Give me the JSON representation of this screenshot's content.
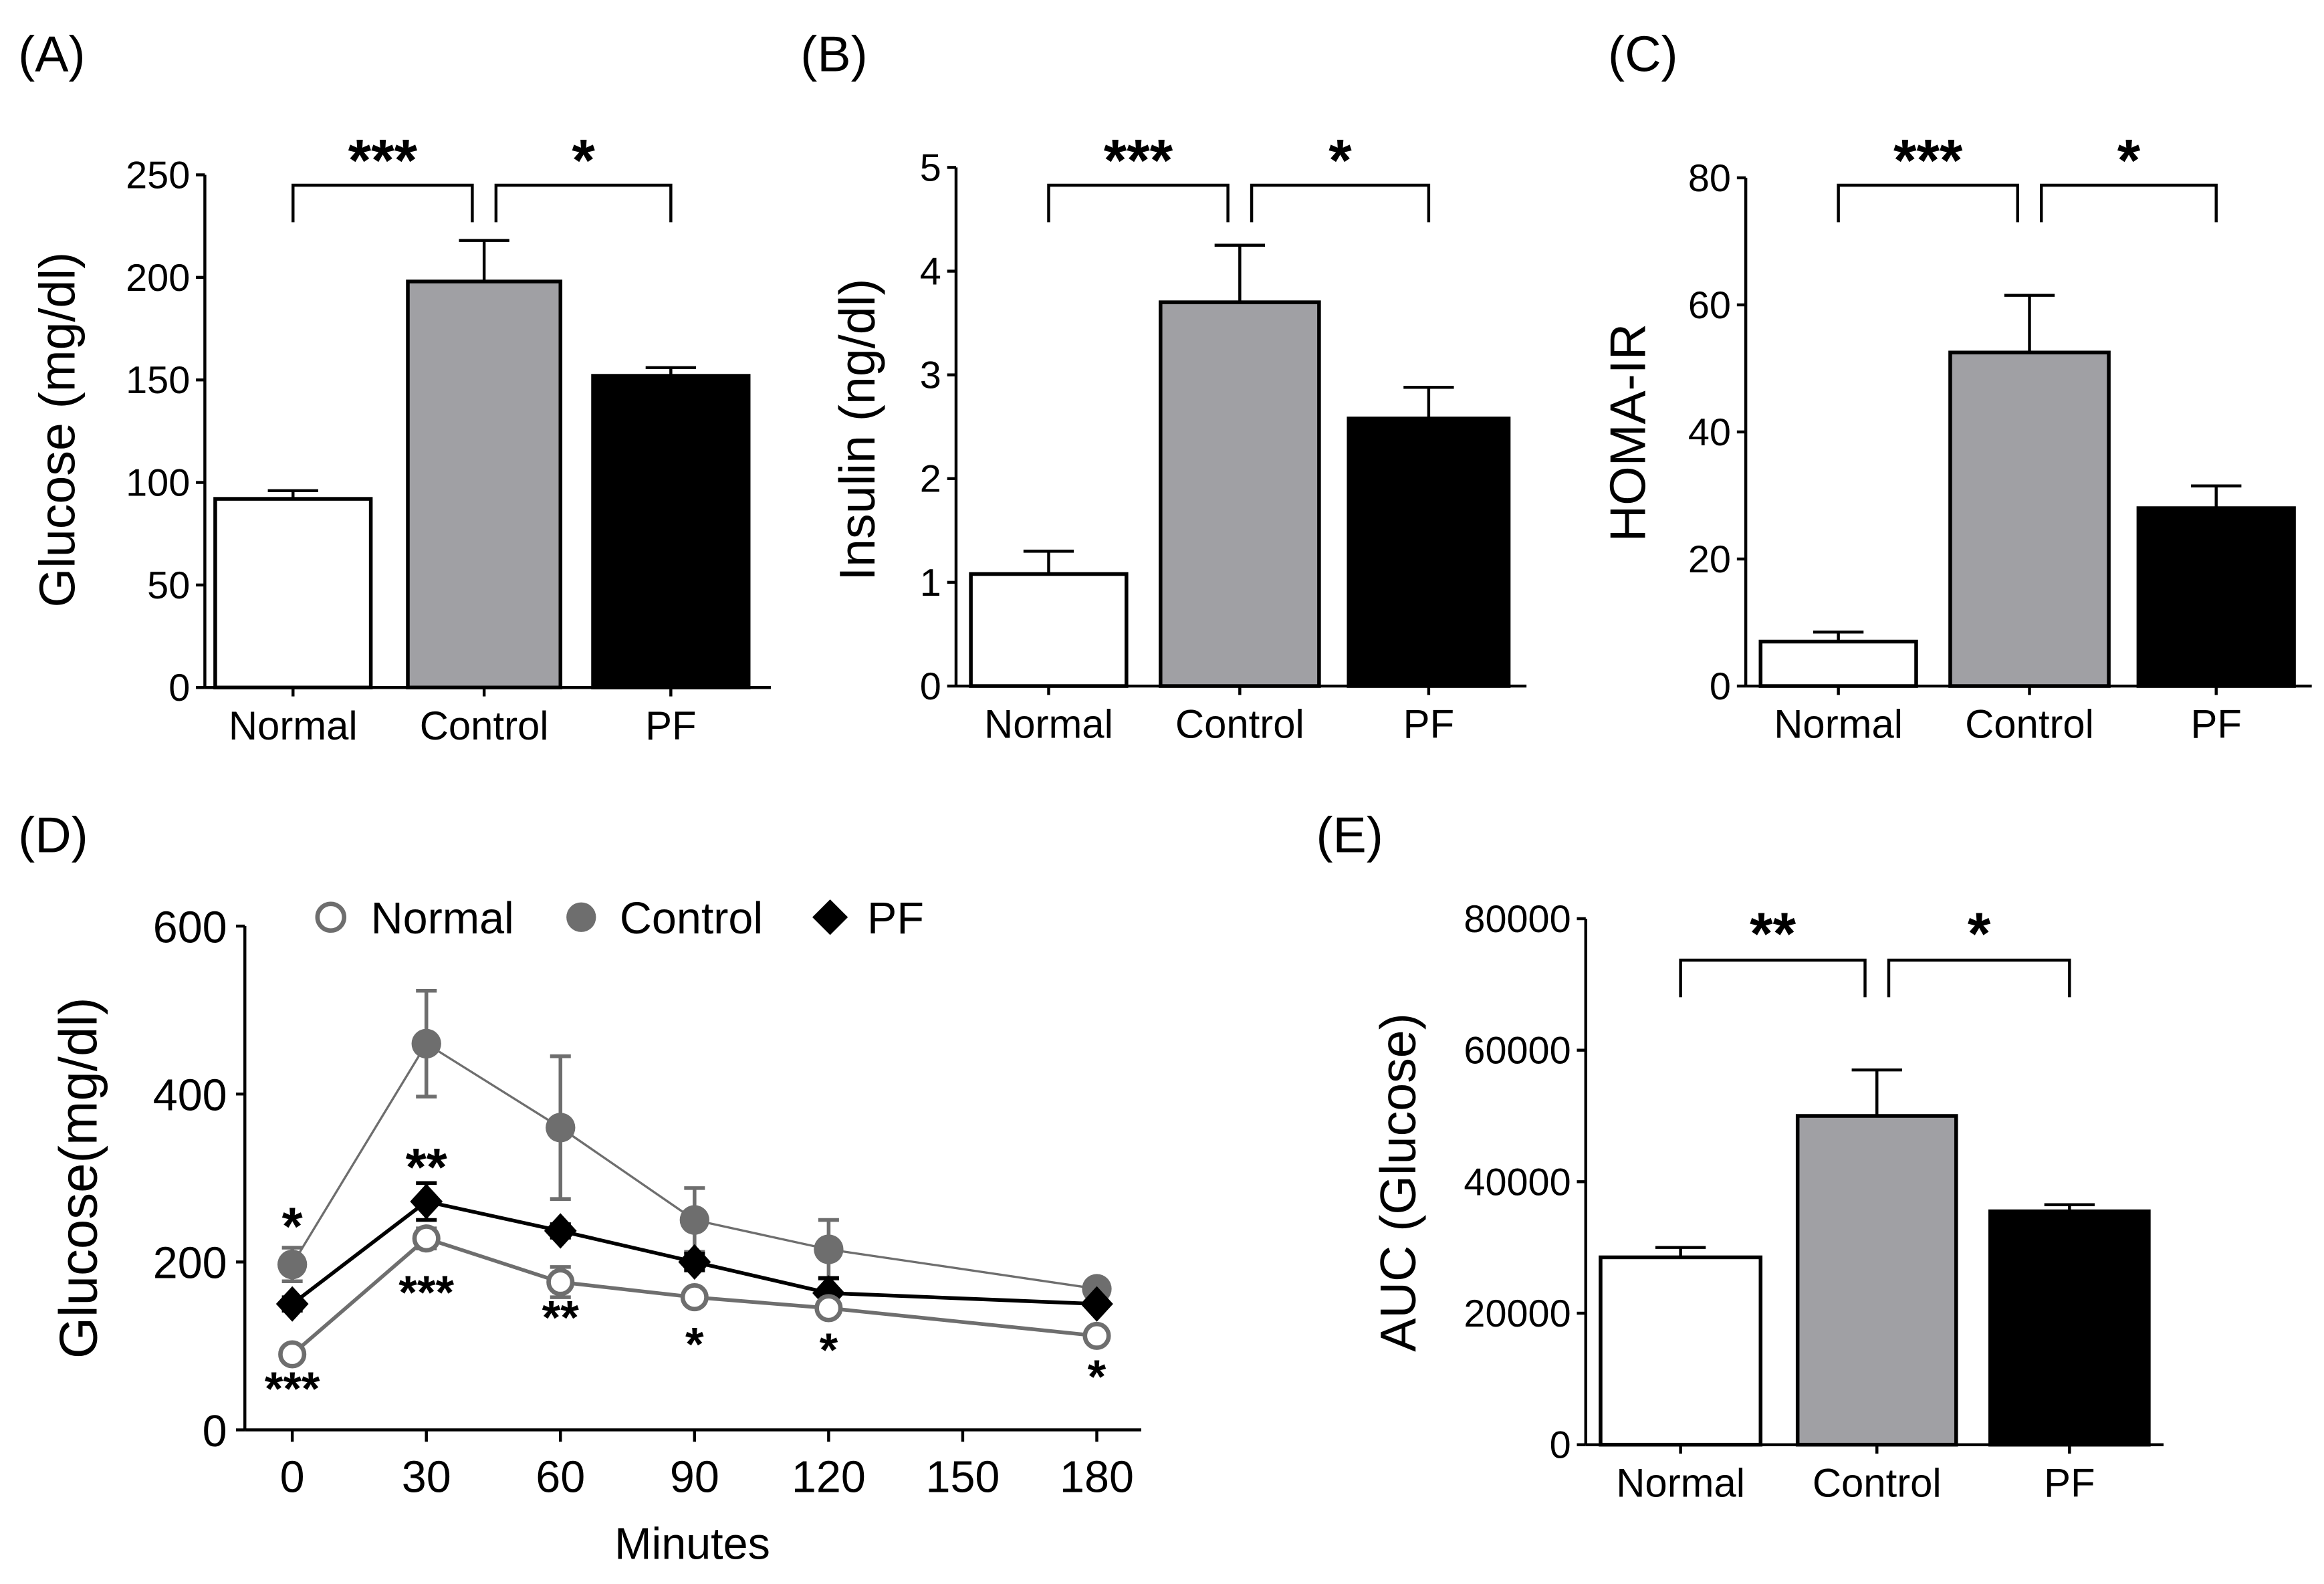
{
  "chart_data": [
    {
      "panel": "(A)",
      "type": "bar",
      "categories": [
        "Normal",
        "Control",
        "PF"
      ],
      "values": [
        92,
        198,
        152
      ],
      "errors": [
        4,
        20,
        4
      ],
      "ylabel": "Glucose (mg/dl)",
      "ylim": [
        0,
        250
      ],
      "yticks": [
        "0",
        "50",
        "100",
        "150",
        "200",
        "250"
      ],
      "colors": [
        "#ffffff",
        "#a0a0a4",
        "#000000"
      ],
      "significance": [
        "***",
        "*"
      ]
    },
    {
      "panel": "(B)",
      "type": "bar",
      "categories": [
        "Normal",
        "Control",
        "PF"
      ],
      "values": [
        1.08,
        3.7,
        2.58
      ],
      "errors": [
        0.22,
        0.55,
        0.3
      ],
      "ylabel": "Insulin (ng/dl)",
      "ylim": [
        0,
        5
      ],
      "yticks": [
        "0",
        "1",
        "2",
        "3",
        "4",
        "5"
      ],
      "colors": [
        "#ffffff",
        "#a0a0a4",
        "#000000"
      ],
      "significance": [
        "***",
        "*"
      ]
    },
    {
      "panel": "(C)",
      "type": "bar",
      "categories": [
        "Normal",
        "Control",
        "PF"
      ],
      "values": [
        7,
        52.5,
        28
      ],
      "errors": [
        1.5,
        9,
        3.5
      ],
      "ylabel": "HOMA-IR",
      "ylim": [
        0,
        80
      ],
      "yticks": [
        "0",
        "20",
        "40",
        "60",
        "80"
      ],
      "colors": [
        "#ffffff",
        "#a0a0a4",
        "#000000"
      ],
      "significance": [
        "***",
        "*"
      ]
    },
    {
      "panel": "(D)",
      "type": "line",
      "xlabel": "Minutes",
      "ylabel": "Glucose(mg/dl)",
      "xlim": [
        0,
        180
      ],
      "ylim": [
        0,
        600
      ],
      "xticks": [
        "0",
        "30",
        "60",
        "90",
        "120",
        "150",
        "180"
      ],
      "yticks": [
        "0",
        "200",
        "400",
        "600"
      ],
      "x": [
        0,
        30,
        60,
        90,
        120,
        180
      ],
      "series": [
        {
          "name": "Normal",
          "values": [
            90,
            228,
            176,
            158,
            145,
            112
          ],
          "errors": [
            5,
            12,
            18,
            8,
            8,
            8
          ],
          "color": "#6e6e6e",
          "marker": "open-circle"
        },
        {
          "name": "Control",
          "values": [
            197,
            460,
            360,
            250,
            215,
            168
          ],
          "errors": [
            20,
            63,
            85,
            38,
            35,
            8
          ],
          "color": "#6e6e6e",
          "marker": "filled-circle"
        },
        {
          "name": "PF",
          "values": [
            150,
            272,
            237,
            200,
            163,
            150
          ],
          "errors": [
            8,
            22,
            8,
            10,
            18,
            5
          ],
          "color": "#000000",
          "marker": "diamond"
        }
      ],
      "annotations_above": [
        "*",
        "**",
        "",
        "",
        "",
        ""
      ],
      "annotations_below": [
        "***",
        "***",
        "**",
        "*",
        "*",
        "*"
      ],
      "legend": "top"
    },
    {
      "panel": "(E)",
      "type": "bar",
      "categories": [
        "Normal",
        "Control",
        "PF"
      ],
      "values": [
        28500,
        50000,
        35500
      ],
      "errors": [
        1500,
        7000,
        1000
      ],
      "ylabel": "AUC (Glucose)",
      "ylim": [
        0,
        80000
      ],
      "yticks": [
        "0",
        "20000",
        "40000",
        "60000",
        "80000"
      ],
      "colors": [
        "#ffffff",
        "#a0a0a4",
        "#000000"
      ],
      "significance": [
        "**",
        "*"
      ]
    }
  ]
}
